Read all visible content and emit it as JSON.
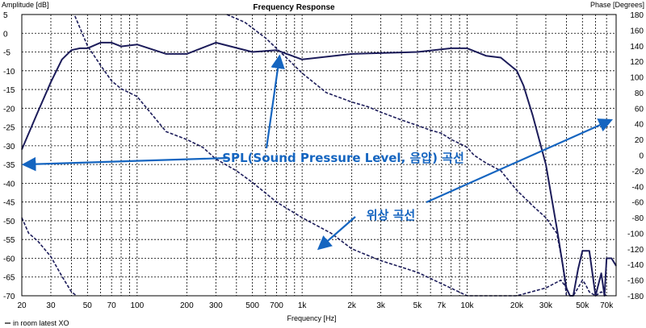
{
  "chart_data": {
    "type": "line",
    "title": "Frequency Response",
    "xlabel": "Frequency [Hz]",
    "ylabel_left": "Amplitude [dB]",
    "ylabel_right": "Phase [Degrees]",
    "x_scale": "log",
    "xlim": [
      20,
      80000
    ],
    "ylim_left": [
      -70,
      5
    ],
    "ylim_right": [
      -180,
      180
    ],
    "x_ticks": [
      {
        "value": 20,
        "label": "20"
      },
      {
        "value": 30,
        "label": "30"
      },
      {
        "value": 50,
        "label": "50"
      },
      {
        "value": 70,
        "label": "70"
      },
      {
        "value": 100,
        "label": "100"
      },
      {
        "value": 200,
        "label": "200"
      },
      {
        "value": 300,
        "label": "300"
      },
      {
        "value": 500,
        "label": "500"
      },
      {
        "value": 700,
        "label": "700"
      },
      {
        "value": 1000,
        "label": "1k"
      },
      {
        "value": 2000,
        "label": "2k"
      },
      {
        "value": 3000,
        "label": "3k"
      },
      {
        "value": 5000,
        "label": "5k"
      },
      {
        "value": 7000,
        "label": "7k"
      },
      {
        "value": 10000,
        "label": "10k"
      },
      {
        "value": 20000,
        "label": "20k"
      },
      {
        "value": 30000,
        "label": "30k"
      },
      {
        "value": 50000,
        "label": "50k"
      },
      {
        "value": 70000,
        "label": "70k"
      }
    ],
    "y_ticks_left": [
      "5",
      "0",
      "-5",
      "-10",
      "-15",
      "-20",
      "-25",
      "-30",
      "-35",
      "-40",
      "-45",
      "-50",
      "-55",
      "-60",
      "-65",
      "-70"
    ],
    "y_ticks_right": [
      "180",
      "160",
      "140",
      "120",
      "100",
      "80",
      "60",
      "40",
      "20",
      "0",
      "-20",
      "-40",
      "-60",
      "-80",
      "-100",
      "-120",
      "-140",
      "-160",
      "-180"
    ],
    "grid": true,
    "legend": [
      {
        "name": "in room latest XO",
        "position": "bottom-left"
      }
    ],
    "series": [
      {
        "name": "in room latest XO",
        "role": "SPL",
        "style": "solid",
        "x": [
          20,
          25,
          30,
          35,
          40,
          45,
          50,
          60,
          70,
          80,
          100,
          150,
          200,
          300,
          500,
          700,
          1000,
          2000,
          5000,
          8000,
          10000,
          13000,
          16000,
          20000,
          22000,
          25000,
          30000,
          35000,
          40000,
          42000,
          44000,
          47000,
          50000,
          55000,
          60000,
          65000,
          68000,
          70000,
          75000,
          80000
        ],
        "y": [
          -31,
          -21,
          -13,
          -7,
          -4.5,
          -4,
          -4,
          -2.5,
          -2.5,
          -3.5,
          -3,
          -5.5,
          -5.5,
          -2.5,
          -5,
          -4.5,
          -7,
          -5.5,
          -5,
          -4,
          -4,
          -6,
          -6.5,
          -10,
          -14,
          -22,
          -35,
          -52,
          -68,
          -70,
          -70,
          -63,
          -58,
          -58,
          -70,
          -64,
          -70,
          -60,
          -60,
          -62
        ]
      },
      {
        "role": "phase",
        "style": "dashed",
        "x": [
          42,
          50,
          60,
          70,
          80,
          100,
          150,
          200,
          250,
          300,
          400,
          500,
          700,
          1000,
          1500,
          2000,
          3000,
          5000,
          10000,
          15000,
          20000,
          30000,
          37000,
          40000,
          42000,
          44000,
          47000,
          50000,
          52000,
          55000,
          60000,
          65000,
          70000
        ],
        "y": [
          178,
          140,
          115,
          95,
          85,
          75,
          30,
          20,
          10,
          -5,
          -20,
          -35,
          -60,
          -80,
          -100,
          -120,
          -135,
          -150,
          -180,
          -180,
          -180,
          -170,
          -160,
          -170,
          -180,
          -180,
          -170,
          -160,
          -165,
          -175,
          -180,
          -175,
          -180
        ]
      },
      {
        "role": "phase",
        "style": "dashed",
        "x": [
          350,
          450,
          600,
          800,
          1000,
          1400,
          2000,
          2500,
          3000,
          4000,
          5000,
          6000,
          7000,
          8000,
          9000,
          10000,
          11000,
          13000,
          16000,
          20000,
          25000,
          30000,
          35000,
          38000,
          40000
        ],
        "y": [
          180,
          170,
          150,
          125,
          105,
          80,
          68,
          62,
          55,
          45,
          38,
          32,
          28,
          20,
          15,
          10,
          0,
          -10,
          -20,
          -45,
          -65,
          -80,
          -100,
          -140,
          -180
        ]
      },
      {
        "role": "phase",
        "style": "dashed",
        "x": [
          20,
          22,
          25,
          30,
          35,
          40,
          43
        ],
        "y": [
          -80,
          -100,
          -110,
          -130,
          -155,
          -175,
          -180
        ]
      }
    ],
    "annotations": [
      {
        "text": "SPL(Sound Pressure Level, 음압) 곡선",
        "targets": [
          {
            "x": 20,
            "y": -35
          },
          {
            "x": 730,
            "y": -5
          }
        ]
      },
      {
        "text": "위상 곡선",
        "axis": "right",
        "targets": [
          {
            "x": 1150,
            "y": -120
          },
          {
            "x": 80000,
            "y": 45
          }
        ]
      }
    ],
    "colors": {
      "line": "#1c1c5a",
      "grid": "#000000",
      "annotation": "#1565c0"
    }
  }
}
